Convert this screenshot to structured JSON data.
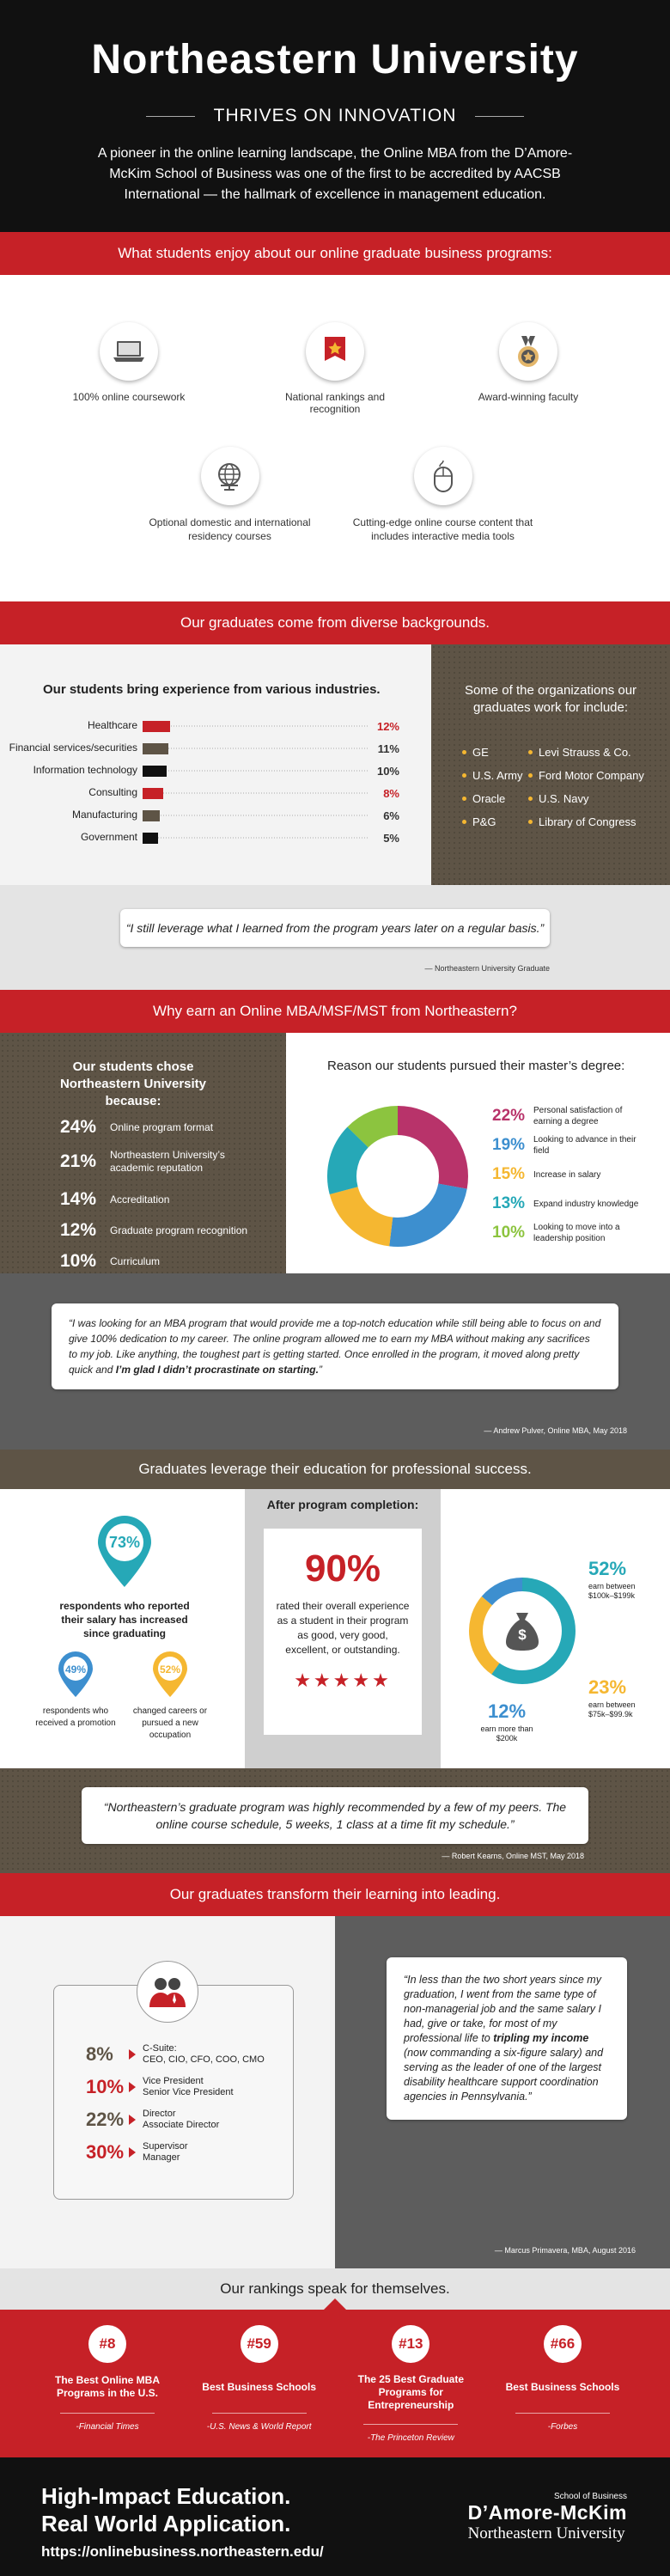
{
  "header": {
    "title": "Northeastern University",
    "subtitle": "THRIVES ON INNOVATION",
    "intro": "A pioneer in the online learning landscape, the Online MBA from the D’Amore-McKim School of Business was one of the first to be accredited by AACSB International — the hallmark of excellence in management education."
  },
  "enjoy": {
    "heading": "What students enjoy about our online graduate business programs:",
    "items": [
      {
        "label": "100% online coursework",
        "icon": "laptop-icon"
      },
      {
        "label": "National rankings and recognition",
        "icon": "award-ribbon-icon"
      },
      {
        "label": "Award-winning faculty",
        "icon": "medal-icon"
      },
      {
        "label": "Optional domestic and international residency courses",
        "icon": "globe-icon"
      },
      {
        "label": "Cutting-edge online course content that includes interactive media tools",
        "icon": "mouse-icon"
      }
    ]
  },
  "backgrounds": {
    "heading": "Our graduates come from diverse backgrounds.",
    "industry_title": "Our students bring experience from various industries.",
    "orgs_title": "Some of the organizations our graduates work for include:",
    "orgs_left": [
      "GE",
      "U.S. Army",
      "Oracle",
      "P&G"
    ],
    "orgs_right": [
      "Levi Strauss & Co.",
      "Ford Motor Company",
      "U.S. Navy",
      "Library of Congress"
    ]
  },
  "chart_data": [
    {
      "type": "bar",
      "title": "Our students bring experience from various industries.",
      "categories": [
        "Healthcare",
        "Financial services/securities",
        "Information technology",
        "Consulting",
        "Manufacturing",
        "Government"
      ],
      "values": [
        12,
        11,
        10,
        8,
        6,
        5
      ],
      "value_labels": [
        "12%",
        "11%",
        "10%",
        "8%",
        "6%",
        "5%"
      ],
      "colors": [
        "#c62127",
        "#5e5446",
        "#111111",
        "#c62127",
        "#5e5446",
        "#111111"
      ],
      "label_colors": [
        "#c62127",
        "#333333",
        "#333333",
        "#c62127",
        "#333333",
        "#333333"
      ],
      "xlim": [
        0,
        12
      ]
    },
    {
      "type": "pie",
      "title": "Reason our students pursued their master’s degree:",
      "categories": [
        "Personal satisfaction of earning a degree",
        "Looking to advance in their field",
        "Increase in salary",
        "Expand industry knowledge",
        "Looking to move into a leadership position"
      ],
      "values": [
        22,
        19,
        15,
        13,
        10
      ],
      "value_labels": [
        "22%",
        "19%",
        "15%",
        "13%",
        "10%"
      ],
      "colors": [
        "#b8336a",
        "#3d8fcf",
        "#f5b731",
        "#26a8b7",
        "#8cc43f"
      ]
    },
    {
      "type": "pie",
      "title": "After program completion:",
      "categories": [
        "earn between $100k–$199k",
        "earn between $75k–$99.9k",
        "earn more than $200k"
      ],
      "values": [
        52,
        23,
        12
      ],
      "value_labels": [
        "52%",
        "23%",
        "12%"
      ],
      "colors": [
        "#26a8b7",
        "#f5b731",
        "#3d8fcf"
      ]
    }
  ],
  "quote1": {
    "text": "“I still leverage what I learned from the program years later on a regular basis.”",
    "author": "— Northeastern University Graduate"
  },
  "why": {
    "heading": "Why earn an Online MBA/MSF/MST from Northeastern?",
    "chose_title": "Our students chose Northeastern University because:",
    "chose": [
      {
        "pct": "24%",
        "label": "Online program format"
      },
      {
        "pct": "21%",
        "label": "Northeastern University’s academic reputation"
      },
      {
        "pct": "14%",
        "label": "Accreditation"
      },
      {
        "pct": "12%",
        "label": "Graduate program recognition"
      },
      {
        "pct": "10%",
        "label": "Curriculum"
      }
    ],
    "reason_title": "Reason our students pursued their master’s degree:"
  },
  "quote2": {
    "text_a": "“I was looking for an MBA program that would provide me a top-notch education while still being able to focus on and give 100% dedication to my career. The online program allowed me to earn my MBA without making any sacrifices to my job. Like anything, the toughest part is getting started. Once enrolled in the program, it moved along pretty quick and ",
    "text_b": "I’m glad I didn’t procrastinate on starting.",
    "text_c": "”",
    "author": "— Andrew Pulver, Online MBA, May 2018"
  },
  "leverage": {
    "heading": "Graduates leverage their education for professional success.",
    "after_title": "After program completion:",
    "salary_pct": "73%",
    "salary_label": "respondents who reported their salary has increased since graduating",
    "promo_pct": "49%",
    "promo_label": "respondents who received a promotion",
    "changed_pct": "52%",
    "changed_label": "changed careers or pursued a new occupation",
    "rated_pct": "90%",
    "rated_label": "rated their overall experience as a student in their program as good, very good, excellent, or outstanding.",
    "stars": "★★★★★",
    "donut_center": "$"
  },
  "quote3": {
    "text": "“Northeastern’s graduate program was highly recommended by a few of my peers. The online course schedule, 5 weeks, 1 class at a time fit my schedule.”",
    "author": "— Robert Kearns, Online MST, May 2018"
  },
  "leading": {
    "heading": "Our graduates transform their learning into leading.",
    "roles": [
      {
        "pct": "8%",
        "label": "C-Suite:\nCEO, CIO, CFO, COO, CMO"
      },
      {
        "pct": "10%",
        "label": "Vice President\nSenior Vice President"
      },
      {
        "pct": "22%",
        "label": "Director\nAssociate Director"
      },
      {
        "pct": "30%",
        "label": "Supervisor\nManager"
      }
    ],
    "quote_a": "“In less than the two short years since my graduation, I went from the same type of non-managerial job and the same salary I had, give or take, for most of my professional life to ",
    "quote_b": "tripling my income",
    "quote_c": " (now commanding a six-figure salary) and serving as the leader of one of the largest disability healthcare support coordination agencies in Pennsylvania.”",
    "author": "— Marcus Primavera, MBA, August 2016"
  },
  "rankings": {
    "heading": "Our rankings speak for themselves.",
    "items": [
      {
        "num": "#8",
        "title": "The Best Online MBA Programs in the U.S.",
        "source": "-Financial Times"
      },
      {
        "num": "#59",
        "title": "Best Business Schools",
        "source": "-U.S. News & World Report"
      },
      {
        "num": "#13",
        "title": "The 25 Best Graduate Programs for Entrepreneurship",
        "source": "-The Princeton Review"
      },
      {
        "num": "#66",
        "title": "Best Business Schools",
        "source": "-Forbes"
      }
    ]
  },
  "footer": {
    "line1": "High-Impact Education.",
    "line2": "Real World Application.",
    "url": "https://onlinebusiness.northeastern.edu/",
    "logo_top": "School of Business",
    "logo_mid": "D’Amore-McKim",
    "logo_bottom": "Northeastern University"
  },
  "colors": {
    "red": "#c62127",
    "brown": "#5e5446",
    "black": "#111111",
    "teal": "#26a8b7",
    "blue": "#3d8fcf",
    "yellow": "#f5b731",
    "magenta": "#b8336a",
    "green": "#8cc43f",
    "tan": "#e3b66a"
  }
}
